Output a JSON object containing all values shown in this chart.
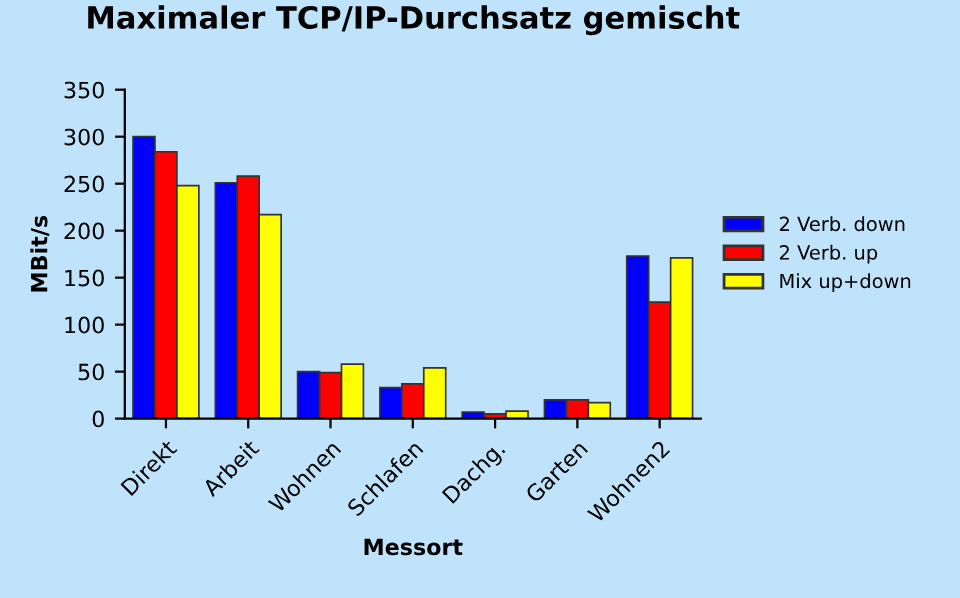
{
  "chart_data": {
    "type": "bar",
    "title": "Maximaler TCP/IP-Durchsatz gemischt",
    "xlabel": "Messort",
    "ylabel": "MBit/s",
    "categories": [
      "Direkt",
      "Arbeit",
      "Wohnen",
      "Schlafen",
      "Dachg.",
      "Garten",
      "Wohnen2"
    ],
    "series": [
      {
        "name": "2 Verb. down",
        "color": "#0000ff",
        "values": [
          300,
          251,
          50,
          33,
          7,
          20,
          173
        ]
      },
      {
        "name": "2 Verb. up",
        "color": "#ff0000",
        "values": [
          284,
          258,
          49,
          37,
          5,
          20,
          124
        ]
      },
      {
        "name": "Mix up+down",
        "color": "#ffff00",
        "values": [
          248,
          217,
          58,
          54,
          8,
          17,
          171
        ]
      }
    ],
    "ylim": [
      0,
      350
    ],
    "yticks": [
      0,
      50,
      100,
      150,
      200,
      250,
      300,
      350
    ],
    "grid": false,
    "legend": "right"
  }
}
